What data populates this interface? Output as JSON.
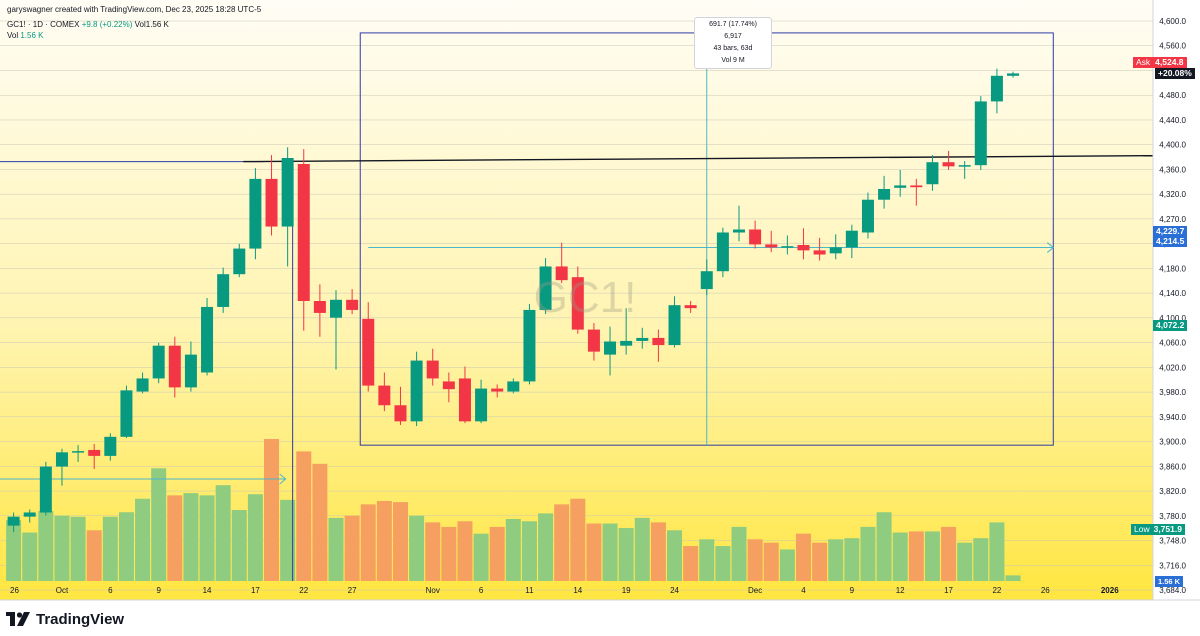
{
  "header": {
    "author_line": "garyswagner created with TradingView.com, Dec 23, 2025 18:28 UTC-5",
    "symbol": "GC1! · 1D · COMEX",
    "change": "+9.8 (+0.22%)",
    "vol_inline": "Vol1.56 K",
    "vol_label": "Vol",
    "vol_value": "1.56 K"
  },
  "watermark": "GC1!",
  "measure_tooltip": {
    "line1": "691.7 (17.74%) 6,917",
    "line2": "43 bars, 63d",
    "line3": "Vol 9 M"
  },
  "price_tags": {
    "ask_label": "Ask",
    "ask_value": "4,524.8",
    "pct": "+20.08%",
    "mid1": "4,229.7",
    "mid2": "4,214.5",
    "anchor": "4,072.2",
    "low_label": "Low",
    "low_value": "3,751.9",
    "vol_tag": "1.56 K"
  },
  "footer": {
    "brand": "TradingView"
  },
  "colors": {
    "up": "#089981",
    "down": "#f23645",
    "vol_up": "#8fcc7f",
    "vol_down": "#f5a060",
    "measure_box": "#2f3aa8",
    "crosshair": "#4db6c9",
    "resistance": "#131722"
  },
  "chart_data": {
    "type": "candlestick",
    "y_axis": {
      "range": [
        3670,
        4610
      ],
      "ticks": [
        "4,600.0",
        "4,560.0",
        "4,520.0",
        "4,480.0",
        "4,440.0",
        "4,400.0",
        "4,360.0",
        "4,320.0",
        "4,270.0",
        "4,230.0",
        "4,180.0",
        "4,140.0",
        "4,100.0",
        "4,060.0",
        "4,020.0",
        "3,980.0",
        "3,940.0",
        "3,900.0",
        "3,860.0",
        "3,820.0",
        "3,780.0",
        "3,748.0",
        "3,716.0",
        "3,684.0"
      ]
    },
    "x_axis": {
      "labels": [
        {
          "text": "26",
          "bar": -1
        },
        {
          "text": "Oct",
          "bar": 3
        },
        {
          "text": "6",
          "bar": 6
        },
        {
          "text": "9",
          "bar": 9
        },
        {
          "text": "14",
          "bar": 12
        },
        {
          "text": "17",
          "bar": 15
        },
        {
          "text": "22",
          "bar": 18
        },
        {
          "text": "27",
          "bar": 21
        },
        {
          "text": "Nov",
          "bar": 26
        },
        {
          "text": "6",
          "bar": 29
        },
        {
          "text": "11",
          "bar": 32
        },
        {
          "text": "14",
          "bar": 35
        },
        {
          "text": "19",
          "bar": 38
        },
        {
          "text": "24",
          "bar": 41
        },
        {
          "text": "Dec",
          "bar": 46
        },
        {
          "text": "4",
          "bar": 49
        },
        {
          "text": "9",
          "bar": 52
        },
        {
          "text": "12",
          "bar": 55
        },
        {
          "text": "17",
          "bar": 58
        },
        {
          "text": "22",
          "bar": 61
        },
        {
          "text": "26",
          "bar": 64
        },
        {
          "text": "2026",
          "bar": 68
        }
      ]
    },
    "candles": [
      {
        "o": 3763,
        "h": 3785,
        "l": 3752,
        "c": 3778
      },
      {
        "o": 3778,
        "h": 3790,
        "l": 3768,
        "c": 3785
      },
      {
        "o": 3785,
        "h": 3870,
        "l": 3780,
        "c": 3862
      },
      {
        "o": 3862,
        "h": 3892,
        "l": 3830,
        "c": 3886
      },
      {
        "o": 3886,
        "h": 3898,
        "l": 3870,
        "c": 3888
      },
      {
        "o": 3890,
        "h": 3900,
        "l": 3858,
        "c": 3880
      },
      {
        "o": 3880,
        "h": 3918,
        "l": 3872,
        "c": 3912
      },
      {
        "o": 3912,
        "h": 3998,
        "l": 3910,
        "c": 3990
      },
      {
        "o": 3988,
        "h": 4020,
        "l": 3985,
        "c": 4010
      },
      {
        "o": 4010,
        "h": 4070,
        "l": 4002,
        "c": 4065
      },
      {
        "o": 4065,
        "h": 4080,
        "l": 3978,
        "c": 3995
      },
      {
        "o": 3995,
        "h": 4072,
        "l": 3988,
        "c": 4050
      },
      {
        "o": 4020,
        "h": 4145,
        "l": 4015,
        "c": 4130
      },
      {
        "o": 4130,
        "h": 4196,
        "l": 4120,
        "c": 4185
      },
      {
        "o": 4185,
        "h": 4236,
        "l": 4180,
        "c": 4228
      },
      {
        "o": 4228,
        "h": 4363,
        "l": 4210,
        "c": 4345
      },
      {
        "o": 4345,
        "h": 4385,
        "l": 4250,
        "c": 4265
      },
      {
        "o": 4265,
        "h": 4398,
        "l": 4198,
        "c": 4380
      },
      {
        "o": 4370,
        "h": 4395,
        "l": 4090,
        "c": 4140
      },
      {
        "o": 4140,
        "h": 4168,
        "l": 4080,
        "c": 4120
      },
      {
        "o": 4112,
        "h": 4158,
        "l": 4025,
        "c": 4142
      },
      {
        "o": 4142,
        "h": 4160,
        "l": 4118,
        "c": 4125
      },
      {
        "o": 4110,
        "h": 4138,
        "l": 3988,
        "c": 3998
      },
      {
        "o": 3998,
        "h": 4020,
        "l": 3955,
        "c": 3965
      },
      {
        "o": 3965,
        "h": 3996,
        "l": 3932,
        "c": 3938
      },
      {
        "o": 3938,
        "h": 4055,
        "l": 3930,
        "c": 4040
      },
      {
        "o": 4040,
        "h": 4060,
        "l": 3998,
        "c": 4010
      },
      {
        "o": 4005,
        "h": 4020,
        "l": 3970,
        "c": 3992
      },
      {
        "o": 4010,
        "h": 4030,
        "l": 3935,
        "c": 3938
      },
      {
        "o": 3938,
        "h": 4008,
        "l": 3935,
        "c": 3993
      },
      {
        "o": 3993,
        "h": 4000,
        "l": 3978,
        "c": 3988
      },
      {
        "o": 3988,
        "h": 4010,
        "l": 3985,
        "c": 4005
      },
      {
        "o": 4005,
        "h": 4135,
        "l": 4000,
        "c": 4125
      },
      {
        "o": 4125,
        "h": 4212,
        "l": 4118,
        "c": 4198
      },
      {
        "o": 4198,
        "h": 4238,
        "l": 4170,
        "c": 4175
      },
      {
        "o": 4180,
        "h": 4198,
        "l": 4085,
        "c": 4092
      },
      {
        "o": 4092,
        "h": 4103,
        "l": 4040,
        "c": 4055
      },
      {
        "o": 4050,
        "h": 4097,
        "l": 4015,
        "c": 4072
      },
      {
        "o": 4065,
        "h": 4128,
        "l": 4050,
        "c": 4073
      },
      {
        "o": 4073,
        "h": 4095,
        "l": 4060,
        "c": 4078
      },
      {
        "o": 4078,
        "h": 4092,
        "l": 4038,
        "c": 4066
      },
      {
        "o": 4066,
        "h": 4148,
        "l": 4062,
        "c": 4133
      },
      {
        "o": 4133,
        "h": 4140,
        "l": 4120,
        "c": 4128
      },
      {
        "o": 4160,
        "h": 4210,
        "l": 4150,
        "c": 4190
      },
      {
        "o": 4190,
        "h": 4263,
        "l": 4180,
        "c": 4255
      },
      {
        "o": 4255,
        "h": 4300,
        "l": 4240,
        "c": 4260
      },
      {
        "o": 4260,
        "h": 4275,
        "l": 4228,
        "c": 4235
      },
      {
        "o": 4235,
        "h": 4258,
        "l": 4222,
        "c": 4230
      },
      {
        "o": 4230,
        "h": 4250,
        "l": 4218,
        "c": 4232
      },
      {
        "o": 4234,
        "h": 4262,
        "l": 4210,
        "c": 4225
      },
      {
        "o": 4225,
        "h": 4246,
        "l": 4208,
        "c": 4218
      },
      {
        "o": 4220,
        "h": 4252,
        "l": 4210,
        "c": 4230
      },
      {
        "o": 4230,
        "h": 4268,
        "l": 4212,
        "c": 4258
      },
      {
        "o": 4255,
        "h": 4322,
        "l": 4245,
        "c": 4310
      },
      {
        "o": 4310,
        "h": 4350,
        "l": 4295,
        "c": 4328
      },
      {
        "o": 4330,
        "h": 4360,
        "l": 4315,
        "c": 4334
      },
      {
        "o": 4334,
        "h": 4345,
        "l": 4300,
        "c": 4331
      },
      {
        "o": 4336,
        "h": 4385,
        "l": 4325,
        "c": 4373
      },
      {
        "o": 4373,
        "h": 4392,
        "l": 4360,
        "c": 4366
      },
      {
        "o": 4366,
        "h": 4375,
        "l": 4345,
        "c": 4368
      },
      {
        "o": 4368,
        "h": 4484,
        "l": 4360,
        "c": 4475
      },
      {
        "o": 4475,
        "h": 4530,
        "l": 4455,
        "c": 4518
      },
      {
        "o": 4518,
        "h": 4525,
        "l": 4515,
        "c": 4522
      }
    ],
    "volume": [
      0.54,
      0.43,
      0.62,
      0.58,
      0.57,
      0.45,
      0.57,
      0.61,
      0.73,
      1.0,
      0.76,
      0.78,
      0.76,
      0.85,
      0.63,
      0.77,
      1.26,
      0.72,
      1.15,
      1.04,
      0.56,
      0.58,
      0.68,
      0.71,
      0.7,
      0.58,
      0.52,
      0.48,
      0.53,
      0.42,
      0.48,
      0.55,
      0.53,
      0.6,
      0.68,
      0.73,
      0.51,
      0.51,
      0.47,
      0.56,
      0.52,
      0.45,
      0.31,
      0.37,
      0.31,
      0.48,
      0.37,
      0.34,
      0.28,
      0.42,
      0.34,
      0.37,
      0.38,
      0.48,
      0.61,
      0.43,
      0.44,
      0.44,
      0.48,
      0.34,
      0.38,
      0.52,
      0.05
    ],
    "volume_max": 1.26,
    "resistance": {
      "from_bar": 14,
      "to_bar": 80,
      "from_price": 4374,
      "to_price": 4384
    },
    "measure_box": {
      "from_bar": 22,
      "to_bar": 64,
      "from_price": 3898,
      "to_price": 4590
    },
    "highlight_lines": [
      {
        "price": 4374,
        "from_bar": -3,
        "to_bar": 15
      },
      {
        "price": 4229.7,
        "from_bar": 22,
        "to_bar": 64
      }
    ]
  }
}
